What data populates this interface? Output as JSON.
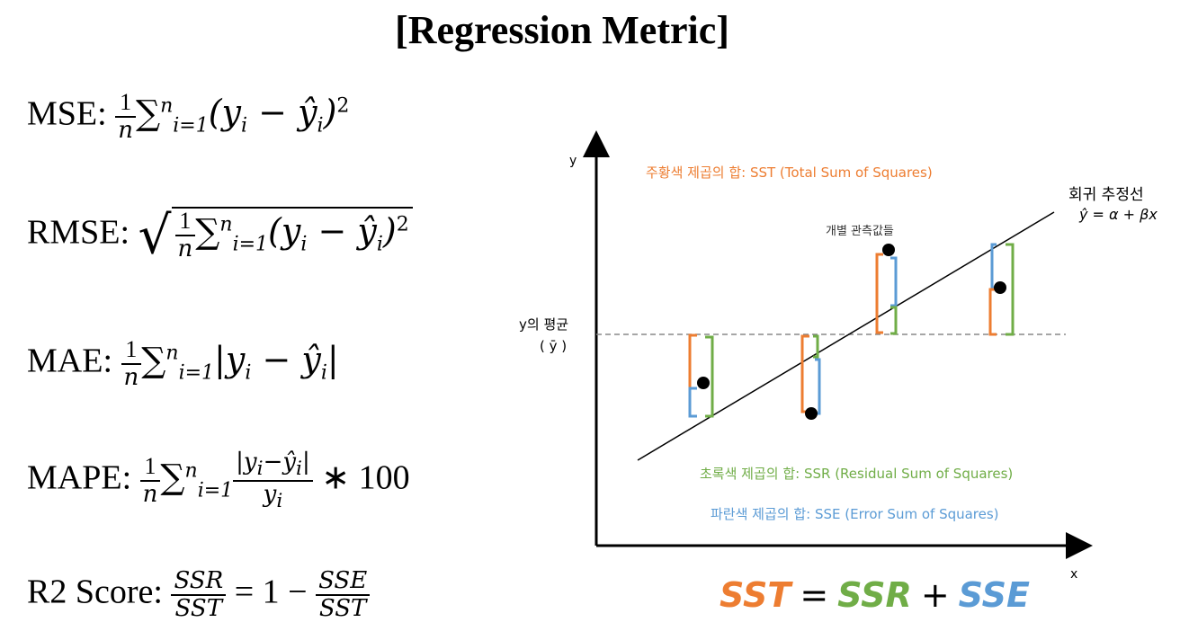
{
  "title": "[Regression Metric]",
  "formulas": {
    "mse_label": "MSE:",
    "rmse_label": "RMSE:",
    "mae_label": "MAE:",
    "mape_label": "MAPE:",
    "r2_label": "R2 Score:",
    "one": "1",
    "n": "n",
    "i_eq_1": "i=1",
    "times_100": "∗ 100",
    "ssr": "SSR",
    "sst": "SST",
    "sse": "SSE",
    "eq_one_minus": "= 1 −"
  },
  "diagram": {
    "y_axis": "y",
    "x_axis": "x",
    "sst_label": "주황색 제곱의 합: SST (Total Sum of Squares)",
    "reg_line_label": "회귀 추정선",
    "reg_line_formula": "ŷ = α + βx",
    "obs_label": "개별 관측값들",
    "mean_label": "y의 평균",
    "mean_symbol": "( ȳ )",
    "ssr_label": "초록색 제곱의 합: SSR (Residual Sum of Squares)",
    "sse_label": "파란색 제곱의 합: SSE (Error Sum of Squares)",
    "colors": {
      "orange": "#ED7D31",
      "green": "#70AD47",
      "blue": "#5B9BD5"
    }
  },
  "equation": {
    "sst": "SST",
    "eq": "=",
    "ssr": "SSR",
    "plus": "+",
    "sse": "SSE"
  }
}
